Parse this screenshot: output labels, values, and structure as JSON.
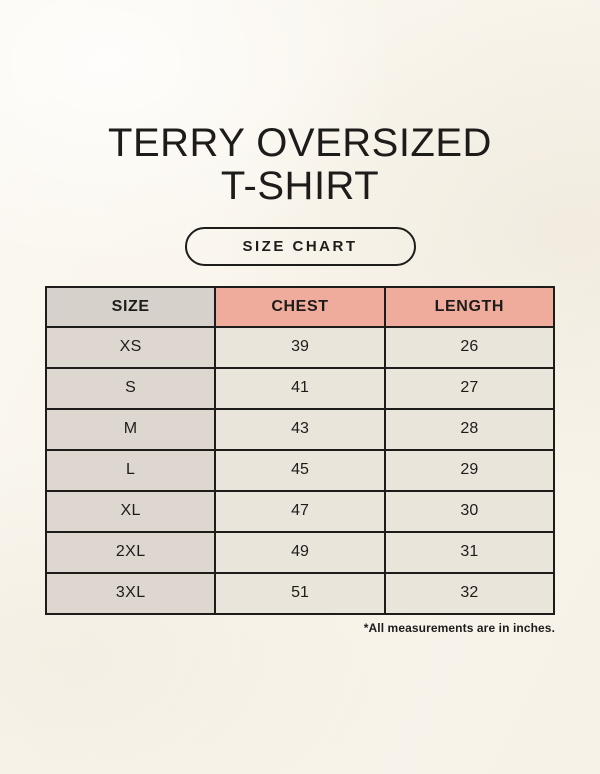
{
  "header": {
    "title_line1": "TERRY OVERSIZED",
    "title_line2": "T-SHIRT",
    "badge_label": "SIZE CHART"
  },
  "footnote": "*All measurements are in inches.",
  "colors": {
    "background": "#f9f5ec",
    "header_pink": "#efac9c",
    "header_gray": "#d7d1cb",
    "size_column": "#ddd7d0",
    "cell_cream": "#eae5da",
    "border": "#1e1c1a",
    "text": "#1e1c1a"
  },
  "chart_data": {
    "type": "table",
    "title": "TERRY OVERSIZED T-SHIRT",
    "subtitle": "SIZE CHART",
    "units": "inches",
    "columns": [
      "SIZE",
      "CHEST",
      "LENGTH"
    ],
    "rows": [
      {
        "size": "XS",
        "chest": "39",
        "length": "26"
      },
      {
        "size": "S",
        "chest": "41",
        "length": "27"
      },
      {
        "size": "M",
        "chest": "43",
        "length": "28"
      },
      {
        "size": "L",
        "chest": "45",
        "length": "29"
      },
      {
        "size": "XL",
        "chest": "47",
        "length": "30"
      },
      {
        "size": "2XL",
        "chest": "49",
        "length": "31"
      },
      {
        "size": "3XL",
        "chest": "51",
        "length": "32"
      }
    ],
    "note": "*All measurements are in inches."
  }
}
